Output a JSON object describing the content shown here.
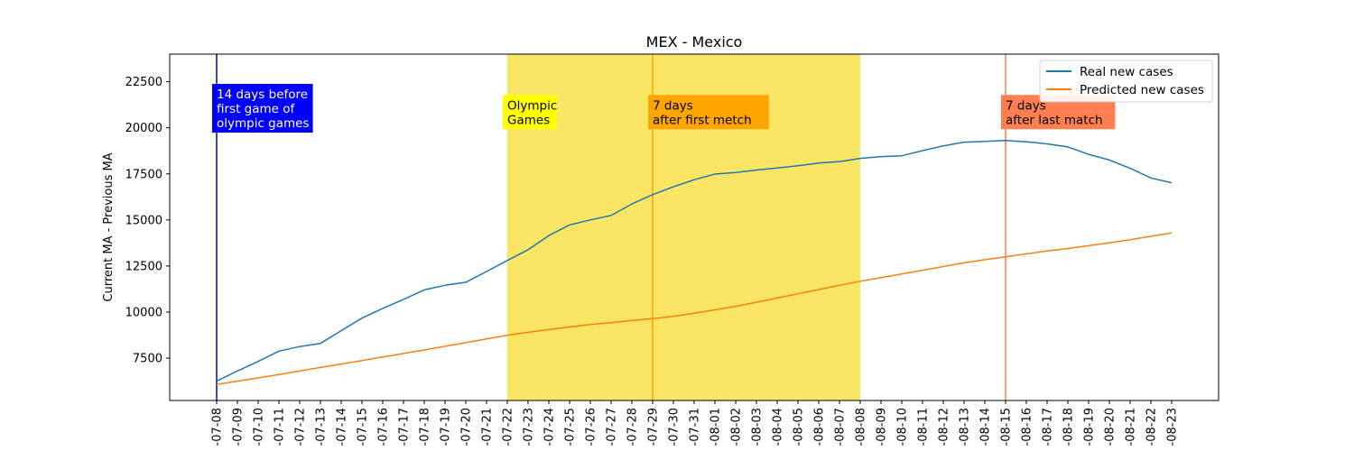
{
  "chart_data": {
    "type": "line",
    "title": "MEX - Mexico",
    "xlabel": "",
    "ylabel": "Current MA - Previous MA",
    "ylim": [
      5200,
      24000
    ],
    "yticks": [
      7500,
      10000,
      12500,
      15000,
      17500,
      20000,
      22500
    ],
    "grid": false,
    "legend_position": "top-right",
    "x": [
      "2021-07-08",
      "2021-07-09",
      "2021-07-10",
      "2021-07-11",
      "2021-07-12",
      "2021-07-13",
      "2021-07-14",
      "2021-07-15",
      "2021-07-16",
      "2021-07-17",
      "2021-07-18",
      "2021-07-19",
      "2021-07-20",
      "2021-07-21",
      "2021-07-22",
      "2021-07-23",
      "2021-07-24",
      "2021-07-25",
      "2021-07-26",
      "2021-07-27",
      "2021-07-28",
      "2021-07-29",
      "2021-07-30",
      "2021-07-31",
      "2021-08-01",
      "2021-08-02",
      "2021-08-03",
      "2021-08-04",
      "2021-08-05",
      "2021-08-06",
      "2021-08-07",
      "2021-08-08",
      "2021-08-09",
      "2021-08-10",
      "2021-08-11",
      "2021-08-12",
      "2021-08-13",
      "2021-08-14",
      "2021-08-15",
      "2021-08-16",
      "2021-08-17",
      "2021-08-18",
      "2021-08-19",
      "2021-08-20",
      "2021-08-21",
      "2021-08-22",
      "2021-08-23"
    ],
    "xtick_labels": [
      "-07-08",
      "-07-09",
      "-07-10",
      "-07-11",
      "-07-12",
      "-07-13",
      "-07-14",
      "-07-15",
      "-07-16",
      "-07-17",
      "-07-18",
      "-07-19",
      "-07-20",
      "-07-21",
      "-07-22",
      "-07-23",
      "-07-24",
      "-07-25",
      "-07-26",
      "-07-27",
      "-07-28",
      "-07-29",
      "-07-30",
      "-07-31",
      "-08-01",
      "-08-02",
      "-08-03",
      "-08-04",
      "-08-05",
      "-08-06",
      "-08-07",
      "-08-08",
      "-08-09",
      "-08-10",
      "-08-11",
      "-08-12",
      "-08-13",
      "-08-14",
      "-08-15",
      "-08-16",
      "-08-17",
      "-08-18",
      "-08-19",
      "-08-20",
      "-08-21",
      "-08-22",
      "-08-23"
    ],
    "series": [
      {
        "name": "Real new cases",
        "color": "#1f77b4",
        "values": [
          6250,
          6800,
          7320,
          7880,
          8130,
          8300,
          8990,
          9670,
          10200,
          10690,
          11200,
          11450,
          11620,
          12200,
          12800,
          13380,
          14150,
          14730,
          15000,
          15240,
          15870,
          16370,
          16800,
          17180,
          17490,
          17570,
          17710,
          17820,
          17940,
          18090,
          18170,
          18340,
          18440,
          18480,
          18760,
          19020,
          19220,
          19260,
          19310,
          19240,
          19130,
          18960,
          18560,
          18250,
          17800,
          17280,
          17020
        ]
      },
      {
        "name": "Predicted new cases",
        "color": "#ff7f0e",
        "values": [
          6070,
          6250,
          6430,
          6610,
          6800,
          6990,
          7180,
          7370,
          7560,
          7750,
          7940,
          8140,
          8340,
          8540,
          8740,
          8900,
          9050,
          9190,
          9320,
          9430,
          9540,
          9640,
          9770,
          9940,
          10120,
          10310,
          10530,
          10760,
          10990,
          11220,
          11450,
          11670,
          11870,
          12070,
          12270,
          12470,
          12670,
          12840,
          13000,
          13160,
          13310,
          13450,
          13600,
          13760,
          13930,
          14110,
          14300
        ]
      }
    ],
    "shaded_region": {
      "from": "2021-07-22",
      "to": "2021-08-08",
      "color": "#fbe564"
    },
    "vlines": [
      {
        "x": "2021-07-08",
        "color": "#0000cd",
        "label": "14 days before\nfirst game of\nolympic games",
        "box_color": "#0000ff",
        "text_color": "#ffffff",
        "label_y": 21600
      },
      {
        "x": "2021-07-29",
        "color": "#ffa500",
        "label": "7 days\nafter first metch",
        "box_color": "#ffa500",
        "text_color": "#000000",
        "label_y": 21000
      },
      {
        "x": "2021-08-15",
        "color": "#ff7f50",
        "label": "7 days\nafter last match",
        "box_color": "#ff7f50",
        "text_color": "#000000",
        "label_y": 21000
      }
    ],
    "region_label": {
      "x": "2021-07-22",
      "text": "Olympic\nGames",
      "box_color": "#ffff00",
      "text_color": "#000000",
      "label_y": 21000
    }
  }
}
